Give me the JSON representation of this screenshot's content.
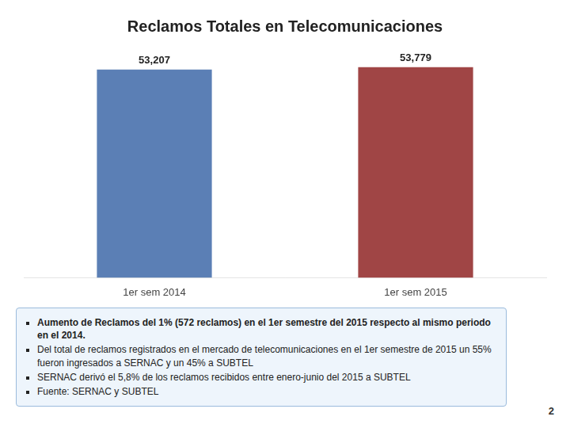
{
  "chart_data": {
    "type": "bar",
    "title": "Reclamos Totales en Telecomunicaciones",
    "categories": [
      "1er sem 2014",
      "1er sem 2015"
    ],
    "values": [
      53207,
      53779
    ],
    "value_labels": [
      "53,207",
      "53,779"
    ],
    "data_labels": true,
    "colors": [
      "#5b7fb5",
      "#a04545"
    ],
    "ylim": [
      0,
      58000
    ],
    "tick_labels": "x",
    "grid": false,
    "annotations": [
      "Aumento de Reclamos del 1% (572 reclamos) en el 1er semestre del 2015 respecto al mismo periodo en el 2014.",
      "Del total de reclamos registrados en el mercado de telecomunicaciones en el 1er semestre de 2015 un 55% fueron ingresados a SERNAC y un 45% a SUBTEL",
      "SERNAC derivó el 5,8% de los reclamos recibidos entre enero-junio del 2015 a SUBTEL",
      "Fuente: SERNAC y SUBTEL"
    ],
    "page_number": "2"
  }
}
